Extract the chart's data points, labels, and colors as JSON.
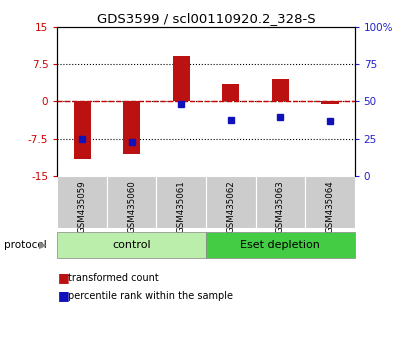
{
  "title": "GDS3599 / scl00110920.2_328-S",
  "categories": [
    "GSM435059",
    "GSM435060",
    "GSM435061",
    "GSM435062",
    "GSM435063",
    "GSM435064"
  ],
  "red_values": [
    -11.5,
    -10.5,
    9.0,
    3.5,
    4.5,
    -0.5
  ],
  "blue_values": [
    -7.5,
    -8.2,
    -0.5,
    -3.8,
    -3.2,
    -4.0
  ],
  "ylim": [
    -15,
    15
  ],
  "yticks_left": [
    -15,
    -7.5,
    0,
    7.5,
    15
  ],
  "yticks_left_labels": [
    "-15",
    "-7.5",
    "0",
    "7.5",
    "15"
  ],
  "right_tick_positions": [
    -15,
    -7.5,
    0,
    7.5,
    15
  ],
  "right_tick_labels": [
    "0",
    "25",
    "50",
    "75",
    "100%"
  ],
  "bar_color": "#bb1111",
  "dot_color": "#1111bb",
  "zero_line_color": "#cc0000",
  "control_color": "#bbeeaa",
  "depletion_color": "#44cc44",
  "protocol_groups": [
    {
      "label": "control",
      "start": 0,
      "end": 3,
      "color": "#bbeeaa"
    },
    {
      "label": "Eset depletion",
      "start": 3,
      "end": 6,
      "color": "#44cc44"
    }
  ],
  "legend_red": "transformed count",
  "legend_blue": "percentile rank within the sample",
  "protocol_label": "protocol",
  "bar_width": 0.35,
  "title_fontsize": 9.5
}
